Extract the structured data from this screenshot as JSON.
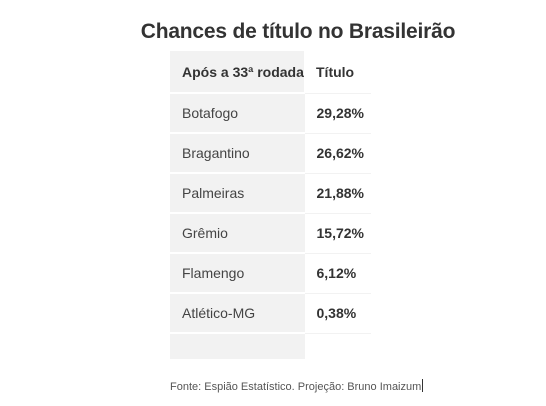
{
  "title": "Chances de título no Brasileirão",
  "table": {
    "headers": [
      "Após a 33ª rodada",
      "Título"
    ],
    "rows": [
      {
        "team": "Botafogo",
        "pct": "29,28%"
      },
      {
        "team": "Bragantino",
        "pct": "26,62%"
      },
      {
        "team": "Palmeiras",
        "pct": "21,88%"
      },
      {
        "team": "Grêmio",
        "pct": "15,72%"
      },
      {
        "team": "Flamengo",
        "pct": "6,12%"
      },
      {
        "team": "Atlético-MG",
        "pct": "0,38%"
      }
    ]
  },
  "source": "Fonte: Espião Estatístico. Projeção: Bruno Imaizum",
  "colors": {
    "shaded_cell": "#f2f2f2",
    "text": "#333333"
  }
}
